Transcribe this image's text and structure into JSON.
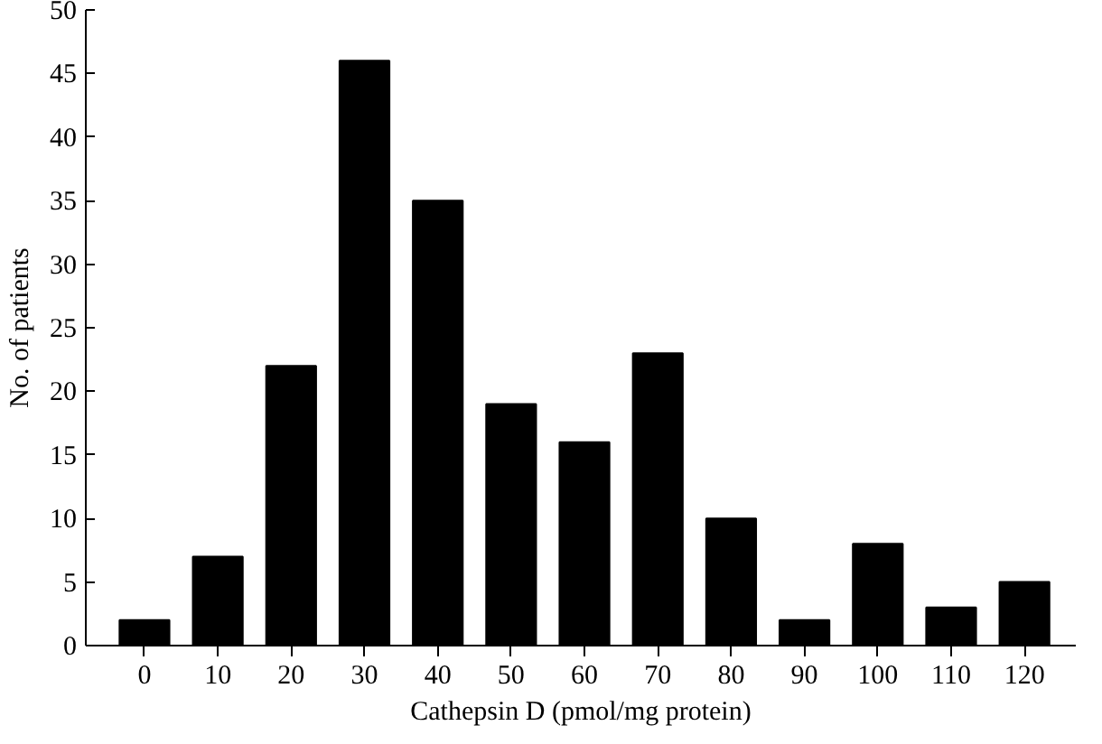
{
  "chart_data": {
    "type": "bar",
    "xlabel": "Cathepsin D (pmol/mg protein)",
    "ylabel": "No. of patients",
    "categories": [
      "0",
      "10",
      "20",
      "30",
      "40",
      "50",
      "60",
      "70",
      "80",
      "90",
      "100",
      "110",
      "120"
    ],
    "values": [
      2,
      7,
      22,
      46,
      35,
      19,
      16,
      23,
      10,
      2,
      8,
      3,
      5
    ],
    "color": "#000000",
    "ylim": [
      0,
      50
    ],
    "yticks": [
      0,
      5,
      10,
      15,
      20,
      25,
      30,
      35,
      40,
      45,
      50
    ],
    "grid": false
  }
}
